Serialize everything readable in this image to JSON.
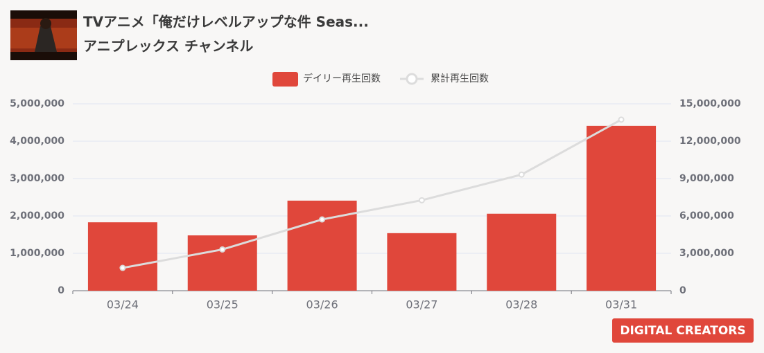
{
  "page": {
    "video_title": "TVアニメ「俺だけレベルアップな件 Seas...",
    "channel": "アニプレックス チャンネル",
    "logo": "DIGITAL CREATORS"
  },
  "chart_data": {
    "type": "bar-line",
    "categories": [
      "03/24",
      "03/25",
      "03/26",
      "03/27",
      "03/28",
      "03/31"
    ],
    "series": [
      {
        "name": "デイリー再生回数",
        "type": "bar",
        "color": "#e0473b",
        "values": [
          1830000,
          1480000,
          2410000,
          1540000,
          2060000,
          4410000
        ]
      },
      {
        "name": "累計再生回数",
        "type": "line",
        "axis": "y2",
        "color": "#dcdcdc",
        "values": [
          1830000,
          3310000,
          5720000,
          7260000,
          9320000,
          13730000
        ]
      }
    ],
    "ylim": [
      0,
      5000000
    ],
    "yticks": [
      0,
      {
        "value": 1000000,
        "label": "1,000,000"
      },
      {
        "value": 2000000,
        "label": "2,000,000"
      },
      {
        "value": 3000000,
        "label": "3,000,000"
      },
      {
        "value": 4000000,
        "label": "4,000,000"
      },
      {
        "value": 5000000,
        "label": "5,000,000"
      }
    ],
    "y2lim": [
      0,
      15000000
    ],
    "y2ticks": [
      0,
      {
        "value": 3000000,
        "label": "3,000,000"
      },
      {
        "value": 6000000,
        "label": "6,000,000"
      },
      {
        "value": 9000000,
        "label": "9,000,000"
      },
      {
        "value": 12000000,
        "label": "12,000,000"
      },
      {
        "value": 15000000,
        "label": "15,000,000"
      }
    ],
    "grid": true,
    "legend": "top"
  }
}
